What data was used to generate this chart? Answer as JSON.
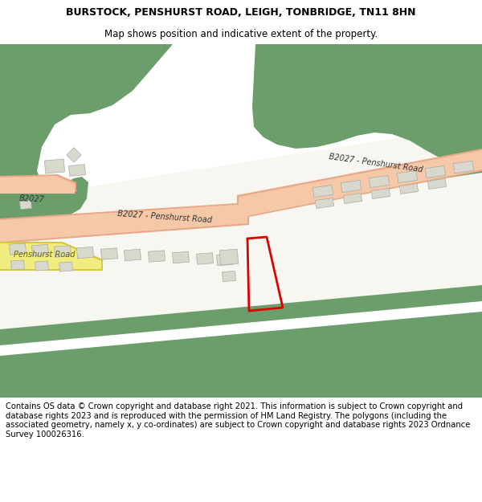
{
  "title": "BURSTOCK, PENSHURST ROAD, LEIGH, TONBRIDGE, TN11 8HN",
  "subtitle": "Map shows position and indicative extent of the property.",
  "footer": "Contains OS data © Crown copyright and database right 2021. This information is subject to Crown copyright and database rights 2023 and is reproduced with the permission of HM Land Registry. The polygons (including the associated geometry, namely x, y co-ordinates) are subject to Crown copyright and database rights 2023 Ordnance Survey 100026316.",
  "bg_color": "#ffffff",
  "map_bg": "#f7f6f0",
  "green_color": "#6b9e6b",
  "road_fill": "#f5c8a8",
  "road_edge": "#e8a888",
  "yellow_fill": "#f0ec80",
  "yellow_edge": "#d8c840",
  "plot_color": "#dd0000",
  "bld_fill": "#d8d8cc",
  "bld_edge": "#aaaaaa",
  "title_fontsize": 9,
  "subtitle_fontsize": 8.5,
  "footer_fontsize": 7.2,
  "label_color": "#333333",
  "yellow_label": "#666600"
}
